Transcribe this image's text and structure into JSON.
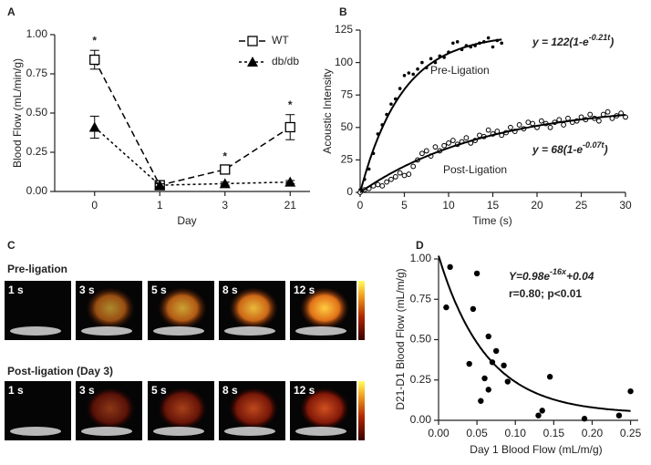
{
  "chart_data": [
    {
      "type": "line",
      "panel": "A",
      "ylabel": "Blood Flow (mL/min/g)",
      "xlabel": "Day",
      "categories": [
        "0",
        "1",
        "3",
        "21"
      ],
      "ylim": [
        0,
        1
      ],
      "yticks": [
        {
          "value": 0,
          "label": "0.00"
        },
        {
          "value": 0.25,
          "label": "0.25"
        },
        {
          "value": 0.5,
          "label": "0.50"
        },
        {
          "value": 0.75,
          "label": "0.75"
        },
        {
          "value": 1,
          "label": "1.00"
        }
      ],
      "legend": "top-right",
      "series": [
        {
          "name": "WT",
          "color": "#000000",
          "marker": "square",
          "dash": "7,4",
          "values": [
            0.84,
            0.04,
            0.14,
            0.41
          ],
          "errors": [
            0.06,
            0.01,
            0.02,
            0.08
          ]
        },
        {
          "name": "db/db",
          "color": "#000000",
          "marker": "triangle",
          "dash": "3,3",
          "values": [
            0.41,
            0.04,
            0.05,
            0.06
          ],
          "errors": [
            0.07,
            0.01,
            0.01,
            0.01
          ]
        }
      ],
      "annotations": [
        {
          "text": "*",
          "x": "0"
        },
        {
          "text": "*",
          "x": "3"
        },
        {
          "text": "*",
          "x": "21"
        }
      ]
    },
    {
      "type": "scatter",
      "panel": "B",
      "ylabel": "Acoustic Intensity",
      "xlabel": "Time (s)",
      "xlim": [
        0,
        30
      ],
      "xticks": [
        0,
        5,
        10,
        15,
        20,
        25,
        30
      ],
      "ylim": [
        0,
        125
      ],
      "yticks": [
        0,
        25,
        50,
        75,
        100,
        125
      ],
      "series": [
        {
          "name": "Pre-Ligation",
          "color": "#000000",
          "marker": "filled-circle",
          "x": [
            0,
            0.5,
            1,
            1.5,
            2,
            2.5,
            3,
            3.5,
            4,
            4.5,
            5,
            5.5,
            6,
            6.5,
            7,
            7.5,
            8,
            8.5,
            9,
            9.5,
            10,
            10.5,
            11,
            11.5,
            12,
            12.5,
            13,
            13.5,
            14,
            14.5,
            15,
            15.5,
            16
          ],
          "values": [
            2,
            10,
            18,
            30,
            45,
            52,
            60,
            68,
            72,
            80,
            90,
            92,
            91,
            95,
            100,
            96,
            103,
            100,
            105,
            104,
            108,
            115,
            116,
            110,
            113,
            112,
            113,
            115,
            116,
            119,
            112,
            117,
            115
          ],
          "fit": {
            "a": 122,
            "k": 0.21
          },
          "equation": {
            "base": "y = 122(1-e",
            "exponent": "-0.21t",
            "tail": ")"
          }
        },
        {
          "name": "Post-Ligation",
          "color": "#000000",
          "marker": "open-circle",
          "x": [
            0,
            0.5,
            1,
            1.5,
            2,
            2.5,
            3,
            3.5,
            4,
            4.5,
            5,
            5.5,
            6,
            6.5,
            7,
            7.5,
            8,
            8.5,
            9,
            9.5,
            10,
            10.5,
            11,
            11.5,
            12,
            12.5,
            13,
            13.5,
            14,
            14.5,
            15,
            15.5,
            16,
            16.5,
            17,
            17.5,
            18,
            18.5,
            19,
            19.5,
            20,
            20.5,
            21,
            21.5,
            22,
            22.5,
            23,
            23.5,
            24,
            24.5,
            25,
            25.5,
            26,
            26.5,
            27,
            27.5,
            28,
            28.5,
            29,
            29.5,
            30
          ],
          "values": [
            0,
            2,
            3,
            5,
            6,
            5,
            8,
            10,
            12,
            15,
            13,
            14,
            20,
            25,
            30,
            32,
            28,
            35,
            32,
            36,
            38,
            40,
            37,
            39,
            42,
            38,
            40,
            44,
            43,
            48,
            45,
            47,
            44,
            46,
            50,
            47,
            52,
            49,
            54,
            53,
            50,
            55,
            53,
            50,
            54,
            56,
            52,
            57,
            54,
            55,
            58,
            56,
            60,
            57,
            55,
            60,
            62,
            57,
            59,
            61,
            58
          ],
          "fit": {
            "a": 68,
            "k": 0.07
          },
          "equation": {
            "base": "y = 68(1-e",
            "exponent": "-0.07t",
            "tail": ")"
          }
        }
      ]
    },
    {
      "type": "scatter",
      "panel": "D",
      "ylabel": "D21-D1 Blood Flow (mL/m/g)",
      "xlabel": "Day 1 Blood Flow (mL/m/g)",
      "xlim": [
        0,
        0.26
      ],
      "xticks": [
        {
          "value": 0,
          "label": "0.00"
        },
        {
          "value": 0.05,
          "label": "0.05"
        },
        {
          "value": 0.1,
          "label": "0.10"
        },
        {
          "value": 0.15,
          "label": "0.15"
        },
        {
          "value": 0.2,
          "label": "0.20"
        },
        {
          "value": 0.25,
          "label": "0.25"
        }
      ],
      "ylim": [
        0,
        1
      ],
      "yticks": [
        {
          "value": 0,
          "label": "0.00"
        },
        {
          "value": 0.25,
          "label": "0.25"
        },
        {
          "value": 0.5,
          "label": "0.50"
        },
        {
          "value": 0.75,
          "label": "0.75"
        },
        {
          "value": 1,
          "label": "1.00"
        }
      ],
      "series": [
        {
          "color": "#000000",
          "marker": "filled-circle",
          "x": [
            0.01,
            0.015,
            0.04,
            0.045,
            0.05,
            0.055,
            0.06,
            0.065,
            0.065,
            0.07,
            0.075,
            0.085,
            0.09,
            0.13,
            0.135,
            0.145,
            0.19,
            0.235,
            0.25
          ],
          "values": [
            0.7,
            0.95,
            0.35,
            0.69,
            0.91,
            0.12,
            0.26,
            0.52,
            0.19,
            0.36,
            0.43,
            0.34,
            0.24,
            0.03,
            0.06,
            0.27,
            0.01,
            0.03,
            0.18
          ],
          "fit": {
            "a": 0.98,
            "k": 16,
            "c": 0.04
          },
          "equation": {
            "base": "Y=0.98e",
            "exponent": "-16x",
            "tail": "+0.04"
          },
          "stats": "r=0.80; p<0.01"
        }
      ]
    }
  ],
  "images": {
    "panel": "C",
    "rows": [
      {
        "title": "Pre-ligation",
        "frames": [
          "1 s",
          "3 s",
          "5 s",
          "8 s",
          "12 s"
        ]
      },
      {
        "title": "Post-ligation (Day 3)",
        "frames": [
          "1 s",
          "3 s",
          "5 s",
          "8 s",
          "12 s"
        ]
      }
    ]
  }
}
